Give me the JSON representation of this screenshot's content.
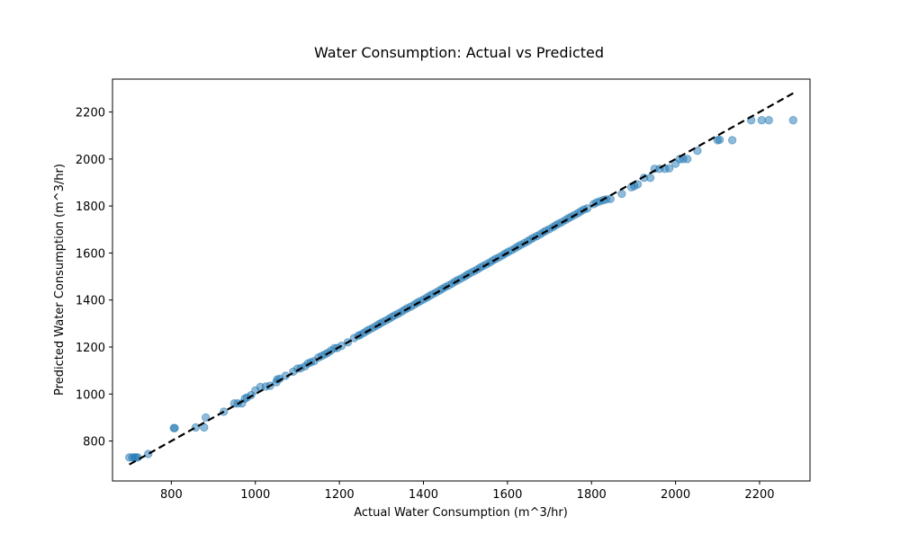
{
  "chart_data": {
    "type": "scatter",
    "title": "Water Consumption: Actual vs Predicted",
    "xlabel": "Actual Water Consumption (m^3/hr)",
    "ylabel": "Predicted Water Consumption (m^3/hr)",
    "xlim": [
      660,
      2320
    ],
    "ylim": [
      630,
      2340
    ],
    "x_ticks": [
      800,
      1000,
      1200,
      1400,
      1600,
      1800,
      2000,
      2200
    ],
    "y_ticks": [
      800,
      1000,
      1200,
      1400,
      1600,
      1800,
      2000,
      2200
    ],
    "grid": false,
    "legend": "none",
    "colors": {
      "points": "#1f77b4",
      "reference_line": "#000000"
    },
    "reference_line": {
      "style": "dashed",
      "from": [
        700,
        700
      ],
      "to": [
        2280,
        2280
      ]
    },
    "points": [
      [
        700,
        730
      ],
      [
        707,
        730
      ],
      [
        712,
        730
      ],
      [
        716,
        730
      ],
      [
        720,
        730
      ],
      [
        745,
        745
      ],
      [
        806,
        855
      ],
      [
        808,
        855
      ],
      [
        858,
        858
      ],
      [
        878,
        858
      ],
      [
        882,
        900
      ],
      [
        925,
        925
      ],
      [
        950,
        960
      ],
      [
        958,
        960
      ],
      [
        968,
        960
      ],
      [
        975,
        980
      ],
      [
        980,
        985
      ],
      [
        990,
        995
      ],
      [
        1000,
        1015
      ],
      [
        1012,
        1030
      ],
      [
        1025,
        1032
      ],
      [
        1035,
        1035
      ],
      [
        1050,
        1050
      ],
      [
        1052,
        1062
      ],
      [
        1058,
        1065
      ],
      [
        1072,
        1078
      ],
      [
        1090,
        1095
      ],
      [
        1100,
        1108
      ],
      [
        1108,
        1110
      ],
      [
        1118,
        1118
      ],
      [
        1125,
        1130
      ],
      [
        1132,
        1135
      ],
      [
        1140,
        1140
      ],
      [
        1150,
        1155
      ],
      [
        1158,
        1162
      ],
      [
        1165,
        1168
      ],
      [
        1172,
        1175
      ],
      [
        1180,
        1185
      ],
      [
        1188,
        1195
      ],
      [
        1195,
        1196
      ],
      [
        1205,
        1205
      ],
      [
        1220,
        1220
      ],
      [
        1235,
        1238
      ],
      [
        1245,
        1248
      ],
      [
        1250,
        1252
      ],
      [
        1258,
        1260
      ],
      [
        1265,
        1268
      ],
      [
        1272,
        1275
      ],
      [
        1280,
        1282
      ],
      [
        1288,
        1290
      ],
      [
        1295,
        1298
      ],
      [
        1302,
        1305
      ],
      [
        1310,
        1312
      ],
      [
        1318,
        1320
      ],
      [
        1325,
        1328
      ],
      [
        1332,
        1335
      ],
      [
        1340,
        1342
      ],
      [
        1348,
        1350
      ],
      [
        1355,
        1358
      ],
      [
        1362,
        1365
      ],
      [
        1370,
        1372
      ],
      [
        1378,
        1380
      ],
      [
        1385,
        1388
      ],
      [
        1392,
        1395
      ],
      [
        1400,
        1402
      ],
      [
        1408,
        1410
      ],
      [
        1415,
        1418
      ],
      [
        1422,
        1425
      ],
      [
        1430,
        1432
      ],
      [
        1438,
        1440
      ],
      [
        1445,
        1448
      ],
      [
        1452,
        1455
      ],
      [
        1460,
        1462
      ],
      [
        1468,
        1470
      ],
      [
        1475,
        1478
      ],
      [
        1482,
        1485
      ],
      [
        1490,
        1492
      ],
      [
        1498,
        1500
      ],
      [
        1505,
        1508
      ],
      [
        1512,
        1515
      ],
      [
        1520,
        1522
      ],
      [
        1528,
        1530
      ],
      [
        1535,
        1538
      ],
      [
        1542,
        1545
      ],
      [
        1550,
        1552
      ],
      [
        1558,
        1560
      ],
      [
        1565,
        1568
      ],
      [
        1572,
        1575
      ],
      [
        1580,
        1582
      ],
      [
        1588,
        1590
      ],
      [
        1595,
        1598
      ],
      [
        1602,
        1605
      ],
      [
        1610,
        1612
      ],
      [
        1618,
        1620
      ],
      [
        1625,
        1628
      ],
      [
        1632,
        1635
      ],
      [
        1640,
        1642
      ],
      [
        1648,
        1650
      ],
      [
        1655,
        1658
      ],
      [
        1662,
        1665
      ],
      [
        1670,
        1672
      ],
      [
        1678,
        1680
      ],
      [
        1685,
        1688
      ],
      [
        1692,
        1695
      ],
      [
        1700,
        1702
      ],
      [
        1708,
        1710
      ],
      [
        1715,
        1718
      ],
      [
        1722,
        1725
      ],
      [
        1730,
        1732
      ],
      [
        1738,
        1740
      ],
      [
        1745,
        1748
      ],
      [
        1752,
        1755
      ],
      [
        1760,
        1762
      ],
      [
        1768,
        1770
      ],
      [
        1775,
        1778
      ],
      [
        1782,
        1785
      ],
      [
        1790,
        1790
      ],
      [
        1805,
        1808
      ],
      [
        1812,
        1815
      ],
      [
        1820,
        1820
      ],
      [
        1828,
        1825
      ],
      [
        1835,
        1828
      ],
      [
        1845,
        1830
      ],
      [
        1872,
        1852
      ],
      [
        1895,
        1880
      ],
      [
        1902,
        1885
      ],
      [
        1910,
        1892
      ],
      [
        1925,
        1920
      ],
      [
        1940,
        1920
      ],
      [
        1950,
        1958
      ],
      [
        1962,
        1958
      ],
      [
        1975,
        1958
      ],
      [
        1985,
        1960
      ],
      [
        2000,
        1980
      ],
      [
        2010,
        2000
      ],
      [
        2018,
        2000
      ],
      [
        2028,
        2000
      ],
      [
        2052,
        2035
      ],
      [
        2100,
        2080
      ],
      [
        2105,
        2082
      ],
      [
        2135,
        2080
      ],
      [
        2180,
        2165
      ],
      [
        2205,
        2165
      ],
      [
        2222,
        2165
      ],
      [
        2280,
        2165
      ]
    ]
  }
}
